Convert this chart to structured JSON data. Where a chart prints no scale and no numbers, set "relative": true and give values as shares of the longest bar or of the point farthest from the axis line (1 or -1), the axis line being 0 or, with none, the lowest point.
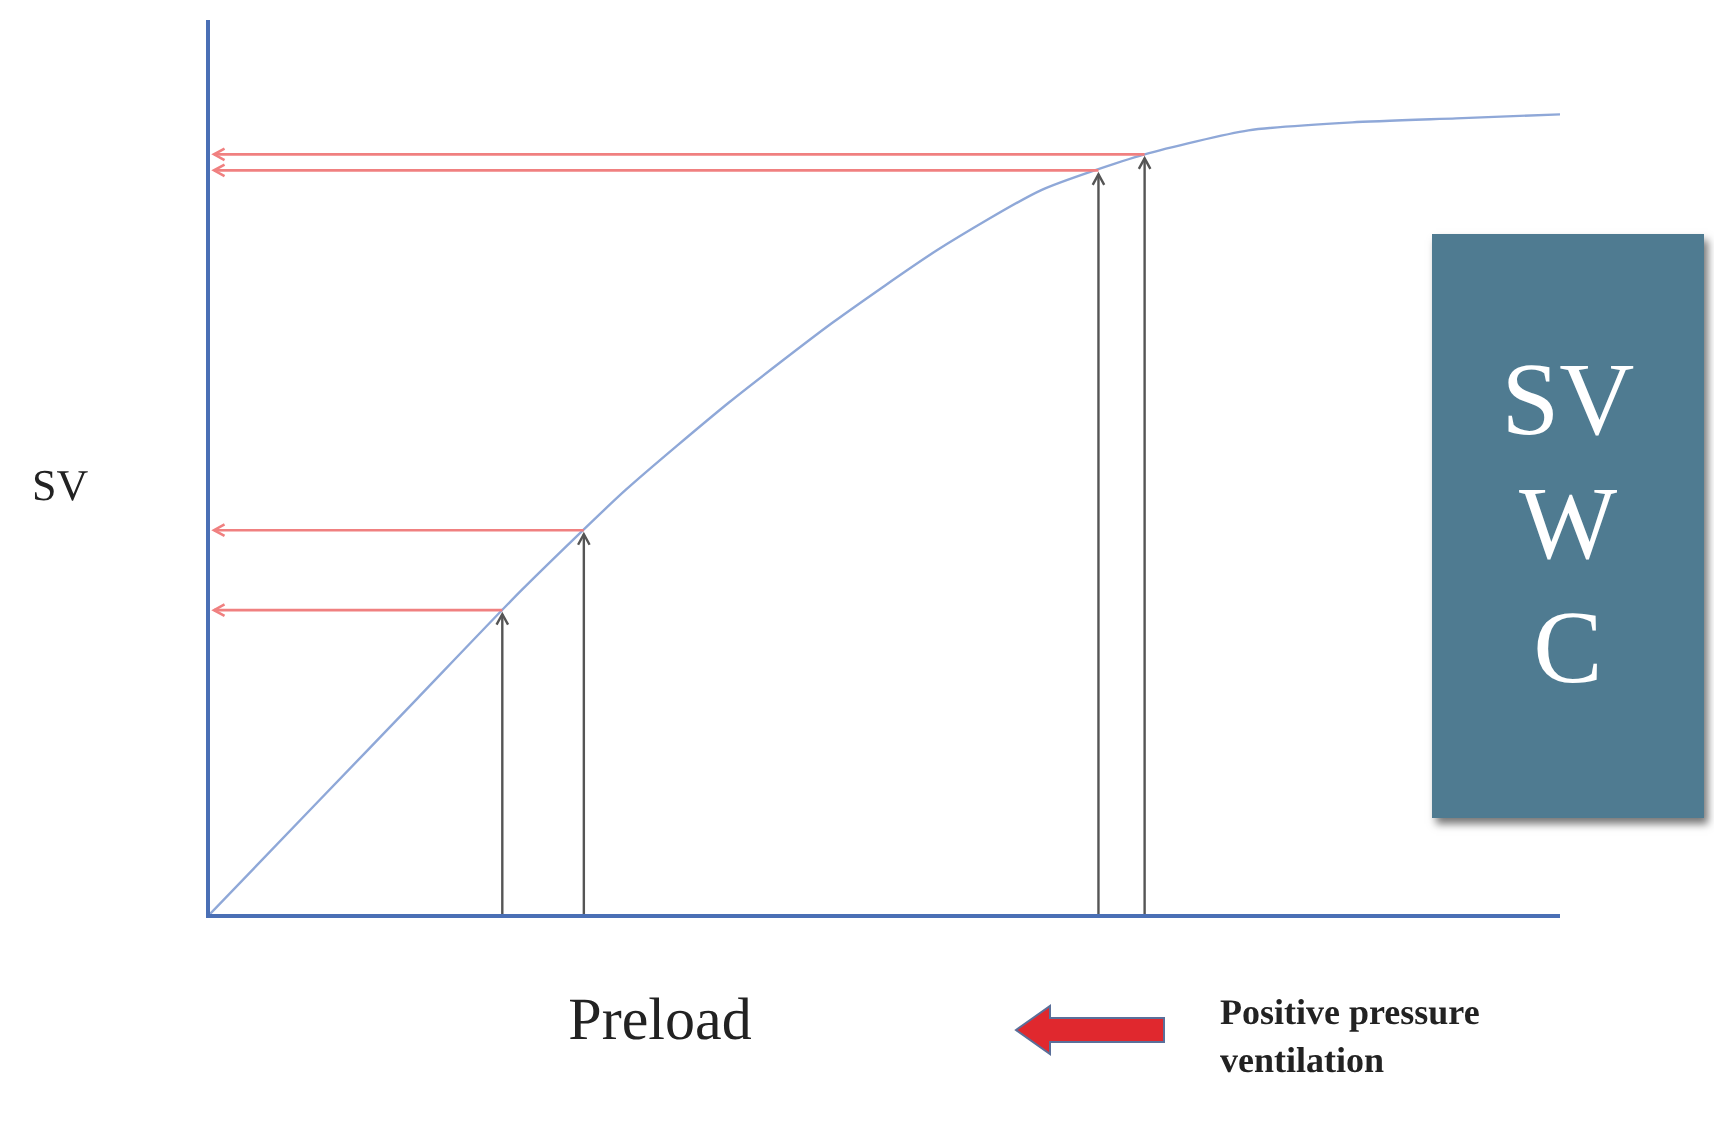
{
  "chart_data": {
    "type": "line",
    "relative": true,
    "xlabel": "Preload",
    "ylabel": "SV",
    "categories": [
      null,
      null,
      null,
      null,
      null,
      null,
      null,
      null,
      null,
      null,
      null,
      null,
      null,
      null
    ],
    "series": [
      {
        "color": "#8fa8d8",
        "values": [
          0,
          0.135,
          0.27,
          0.405,
          0.53,
          0.64,
          0.74,
          0.83,
          0.905,
          0.95,
          0.98,
          0.99,
          0.995,
          1
        ]
      }
    ],
    "marker": "none",
    "line_style": "solid",
    "grid": false,
    "ref_lines": [
      {
        "axis": "y",
        "value": 0.38,
        "color": "#f08080"
      },
      {
        "axis": "y",
        "value": 0.48,
        "color": "#f08080"
      },
      {
        "axis": "y",
        "value": 0.93,
        "color": "#f08080"
      },
      {
        "axis": "y",
        "value": 0.95,
        "color": "#f08080"
      }
    ],
    "annotations": [
      "Positive pressure ventilation",
      "SV",
      "W",
      "C"
    ]
  }
}
